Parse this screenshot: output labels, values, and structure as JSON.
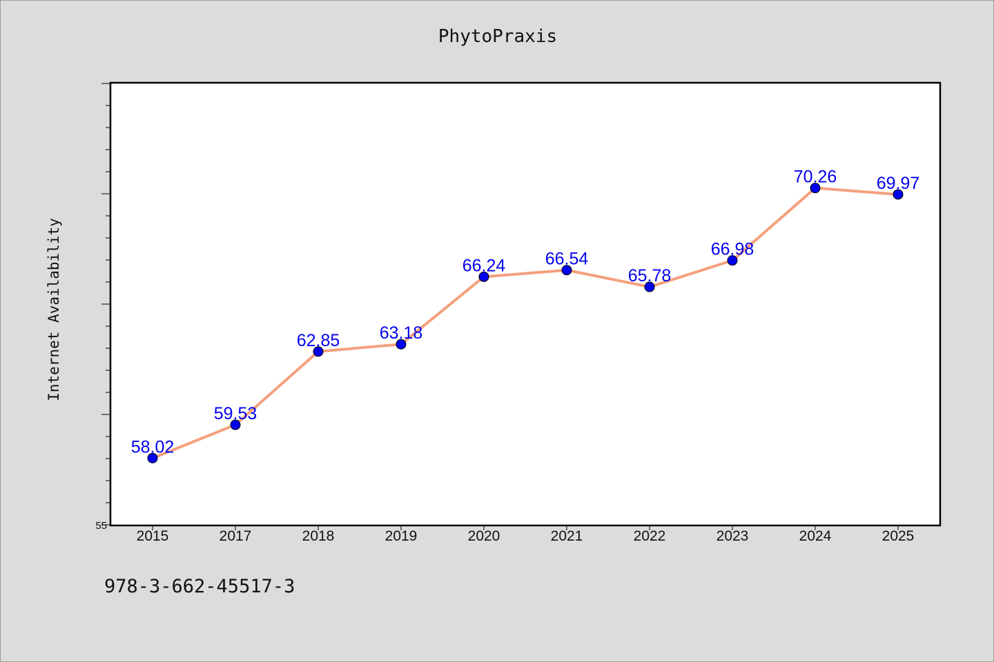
{
  "chart_data": {
    "type": "line",
    "title": "PhytoPraxis",
    "xlabel": "",
    "ylabel": "Internet Availability",
    "categories": [
      "2015",
      "2017",
      "2018",
      "2019",
      "2020",
      "2021",
      "2022",
      "2023",
      "2024",
      "2025"
    ],
    "series": [
      {
        "values": [
          58.02,
          59.53,
          62.85,
          63.18,
          66.24,
          66.54,
          65.78,
          66.98,
          70.26,
          69.97
        ]
      }
    ],
    "data_labels": [
      "58.02",
      "59.53",
      "62.85",
      "63.18",
      "66.24",
      "66.54",
      "65.78",
      "66.98",
      "70.26",
      "69.97"
    ],
    "ylim": [
      55,
      75
    ],
    "y_tick_labels": [
      "55"
    ],
    "grid": false,
    "line_color": "#f4a07d",
    "marker_color": "#0000ee",
    "label_color": "#0000ee"
  },
  "footnote": "978-3-662-45517-3"
}
